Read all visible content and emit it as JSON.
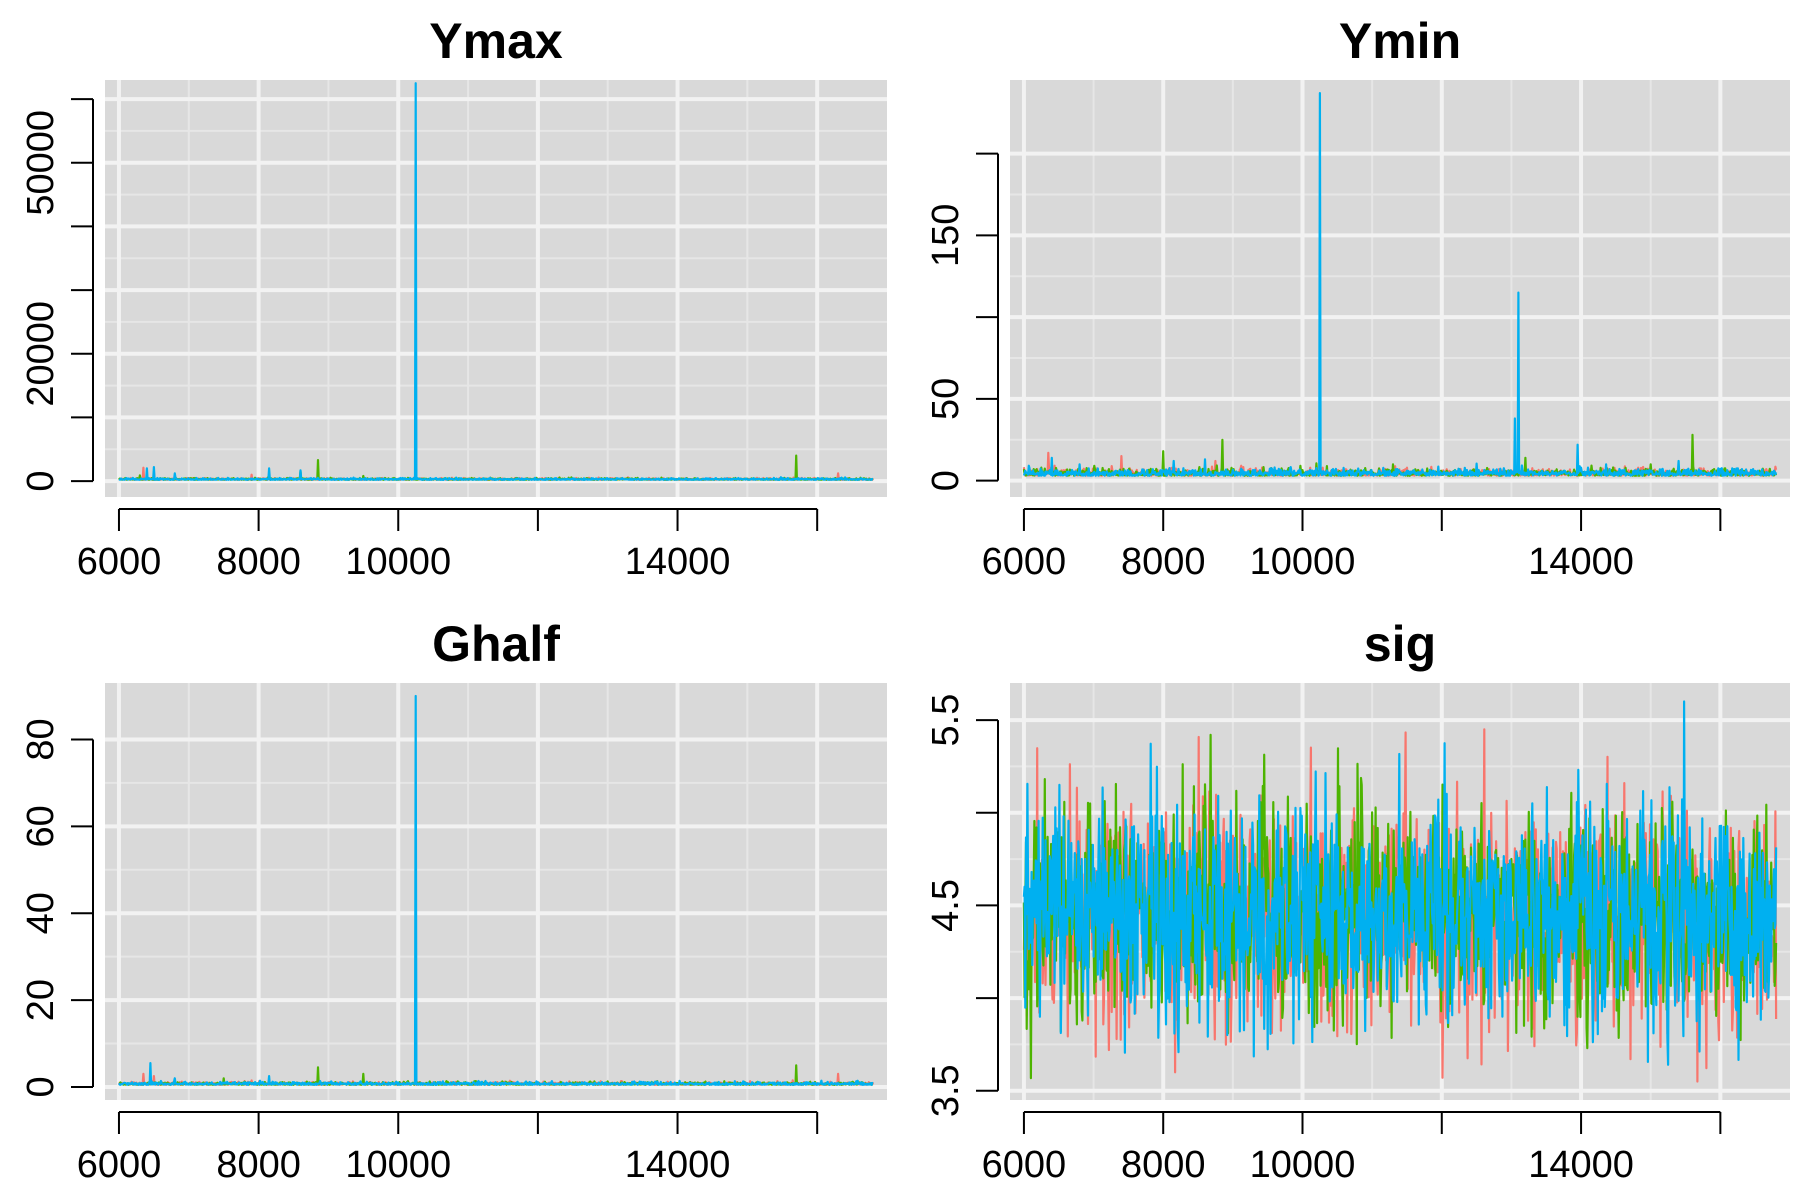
{
  "colors": {
    "chain1": "#F8766D",
    "chain2": "#4DB400",
    "chain3": "#00B0F0",
    "panel_bg": "#D9D9D9"
  },
  "chart_data": [
    {
      "type": "line",
      "title": "Ymax",
      "xlim": [
        5800,
        17000
      ],
      "ylim": [
        -2500,
        63000
      ],
      "xticks": [
        6000,
        8000,
        10000,
        12000,
        14000,
        16000
      ],
      "xtick_labels": [
        "6000",
        "8000",
        "10000",
        "",
        "14000",
        ""
      ],
      "yticks": [
        0,
        10000,
        20000,
        30000,
        40000,
        50000,
        60000
      ],
      "ytick_labels": [
        "0",
        "",
        "20000",
        "",
        "",
        "50000",
        ""
      ],
      "grid": true,
      "series": [
        {
          "color_key": "chain1",
          "baseline": 200,
          "noise": 120,
          "spikes": [
            [
              6350,
              2100
            ],
            [
              6500,
              1500
            ],
            [
              7900,
              1000
            ],
            [
              16300,
              1200
            ]
          ]
        },
        {
          "color_key": "chain2",
          "baseline": 200,
          "noise": 120,
          "spikes": [
            [
              6300,
              900
            ],
            [
              8600,
              1500
            ],
            [
              8850,
              3300
            ],
            [
              9500,
              800
            ],
            [
              15700,
              4000
            ]
          ]
        },
        {
          "color_key": "chain3",
          "baseline": 200,
          "noise": 120,
          "spikes": [
            [
              6400,
              2000
            ],
            [
              6500,
              2200
            ],
            [
              6800,
              1200
            ],
            [
              8150,
              2000
            ],
            [
              8600,
              1700
            ],
            [
              10250,
              62500
            ]
          ]
        }
      ]
    },
    {
      "type": "line",
      "title": "Ymin",
      "xlim": [
        5800,
        17000
      ],
      "ylim": [
        -10,
        245
      ],
      "xticks": [
        6000,
        8000,
        10000,
        12000,
        14000,
        16000
      ],
      "xtick_labels": [
        "6000",
        "8000",
        "10000",
        "",
        "14000",
        ""
      ],
      "yticks": [
        0,
        50,
        100,
        150,
        200
      ],
      "ytick_labels": [
        "0",
        "50",
        "",
        "150",
        ""
      ],
      "grid": true,
      "series": [
        {
          "color_key": "chain1",
          "baseline": 3,
          "noise": 2,
          "spikes": [
            [
              6350,
              17
            ],
            [
              7400,
              15
            ],
            [
              8750,
              12
            ],
            [
              10600,
              6
            ],
            [
              13100,
              5
            ]
          ]
        },
        {
          "color_key": "chain2",
          "baseline": 3,
          "noise": 2,
          "spikes": [
            [
              6250,
              8
            ],
            [
              8000,
              18
            ],
            [
              8850,
              25
            ],
            [
              11300,
              10
            ],
            [
              12500,
              8
            ],
            [
              13200,
              14
            ],
            [
              15000,
              10
            ],
            [
              15600,
              28
            ]
          ]
        },
        {
          "color_key": "chain3",
          "baseline": 3,
          "noise": 2,
          "spikes": [
            [
              6400,
              14
            ],
            [
              6800,
              10
            ],
            [
              7850,
              7
            ],
            [
              8150,
              12
            ],
            [
              8600,
              13
            ],
            [
              10250,
              237
            ],
            [
              13100,
              115
            ],
            [
              13050,
              38
            ],
            [
              13950,
              22
            ],
            [
              15400,
              12
            ]
          ]
        }
      ]
    },
    {
      "type": "line",
      "title": "Ghalf",
      "xlim": [
        5800,
        17000
      ],
      "ylim": [
        -3,
        93
      ],
      "xticks": [
        6000,
        8000,
        10000,
        12000,
        14000,
        16000
      ],
      "xtick_labels": [
        "6000",
        "8000",
        "10000",
        "",
        "14000",
        ""
      ],
      "yticks": [
        0,
        20,
        40,
        60,
        80
      ],
      "ytick_labels": [
        "0",
        "20",
        "40",
        "60",
        "80"
      ],
      "grid": true,
      "series": [
        {
          "color_key": "chain1",
          "baseline": 0.5,
          "noise": 0.3,
          "spikes": [
            [
              6350,
              3
            ],
            [
              6500,
              2.5
            ],
            [
              7900,
              1.5
            ],
            [
              16300,
              3
            ]
          ]
        },
        {
          "color_key": "chain2",
          "baseline": 0.5,
          "noise": 0.3,
          "spikes": [
            [
              7500,
              2
            ],
            [
              8850,
              4.5
            ],
            [
              9500,
              3
            ],
            [
              15700,
              5
            ]
          ]
        },
        {
          "color_key": "chain3",
          "baseline": 0.5,
          "noise": 0.3,
          "spikes": [
            [
              6450,
              5.5
            ],
            [
              6800,
              2
            ],
            [
              8150,
              2.5
            ],
            [
              10250,
              90
            ]
          ]
        }
      ]
    },
    {
      "type": "line",
      "title": "sig",
      "xlim": [
        5800,
        17000
      ],
      "ylim": [
        3.45,
        5.7
      ],
      "xticks": [
        6000,
        8000,
        10000,
        12000,
        14000,
        16000
      ],
      "xtick_labels": [
        "6000",
        "8000",
        "10000",
        "",
        "14000",
        ""
      ],
      "yticks": [
        3.5,
        4.0,
        4.5,
        5.0,
        5.5
      ],
      "ytick_labels": [
        "3.5",
        "",
        "4.5",
        "",
        "5.5"
      ],
      "grid": true,
      "series": [
        {
          "color_key": "chain1",
          "mean": 4.45,
          "noise": 0.3,
          "min": 3.55,
          "max": 5.45
        },
        {
          "color_key": "chain2",
          "mean": 4.45,
          "noise": 0.3,
          "min": 3.5,
          "max": 5.62
        },
        {
          "color_key": "chain3",
          "mean": 4.45,
          "noise": 0.3,
          "min": 3.52,
          "max": 5.6
        }
      ]
    }
  ]
}
